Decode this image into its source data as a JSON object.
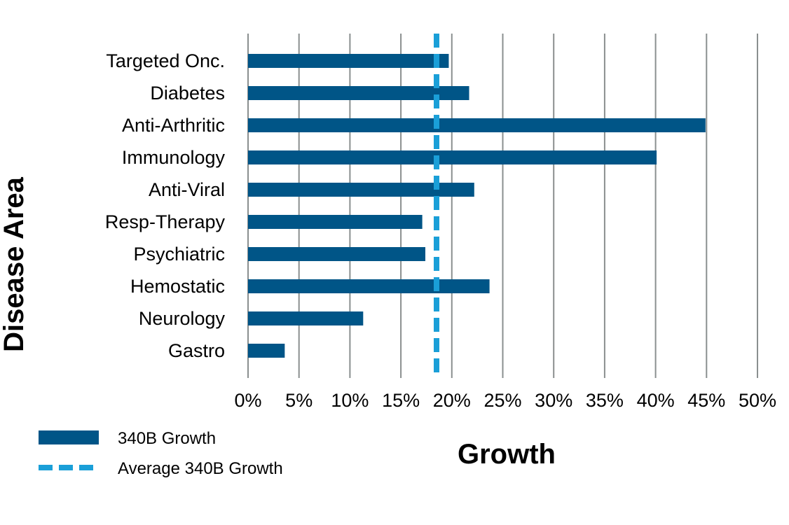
{
  "chart_data": {
    "type": "bar",
    "orientation": "horizontal",
    "categories": [
      "Targeted Onc.",
      "Diabetes",
      "Anti-Arthritic",
      "Immunology",
      "Anti-Viral",
      "Resp-Therapy",
      "Psychiatric",
      "Hemostatic",
      "Neurology",
      "Gastro"
    ],
    "series": [
      {
        "name": "340B Growth",
        "values": [
          19.7,
          21.7,
          44.9,
          40.1,
          22.2,
          17.1,
          17.4,
          23.7,
          11.3,
          3.6
        ],
        "color": "#005587"
      }
    ],
    "reference_line": {
      "name": "Average 340B Growth",
      "value": 18.5,
      "color": "#1a9fd8",
      "style": "dashed"
    },
    "xlabel": "Growth",
    "ylabel": "Disease Area",
    "xlim": [
      0,
      50
    ],
    "x_ticks": [
      "0%",
      "5%",
      "10%",
      "15%",
      "20%",
      "25%",
      "30%",
      "35%",
      "40%",
      "45%",
      "50%"
    ],
    "grid": "vertical",
    "legend_position": "bottom-left"
  }
}
